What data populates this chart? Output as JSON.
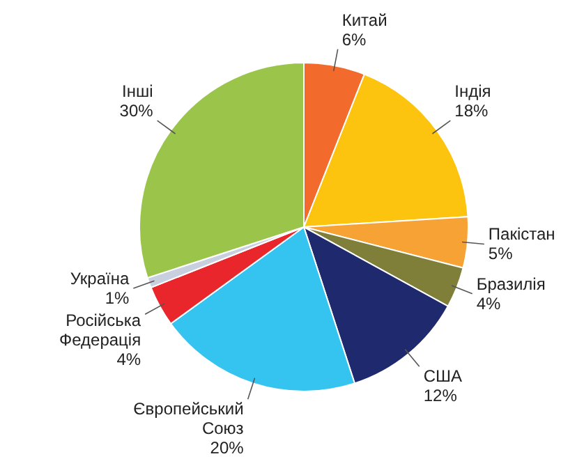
{
  "chart_data": {
    "type": "pie",
    "categories": [
      "Китай",
      "Індія",
      "Пакістан",
      "Бразилія",
      "США",
      "Європейський Союз",
      "Російська Федерація",
      "Україна",
      "Інші"
    ],
    "values": [
      6,
      18,
      5,
      4,
      12,
      20,
      4,
      1,
      30
    ],
    "value_labels": [
      "6%",
      "18%",
      "5%",
      "4%",
      "12%",
      "20%",
      "4%",
      "1%",
      "30%"
    ],
    "colors": [
      "#f26a2c",
      "#fdc40f",
      "#f7a234",
      "#7f7f3a",
      "#1f2a6e",
      "#35c3f0",
      "#e8262b",
      "#c8d0e0",
      "#9bc54a"
    ]
  }
}
